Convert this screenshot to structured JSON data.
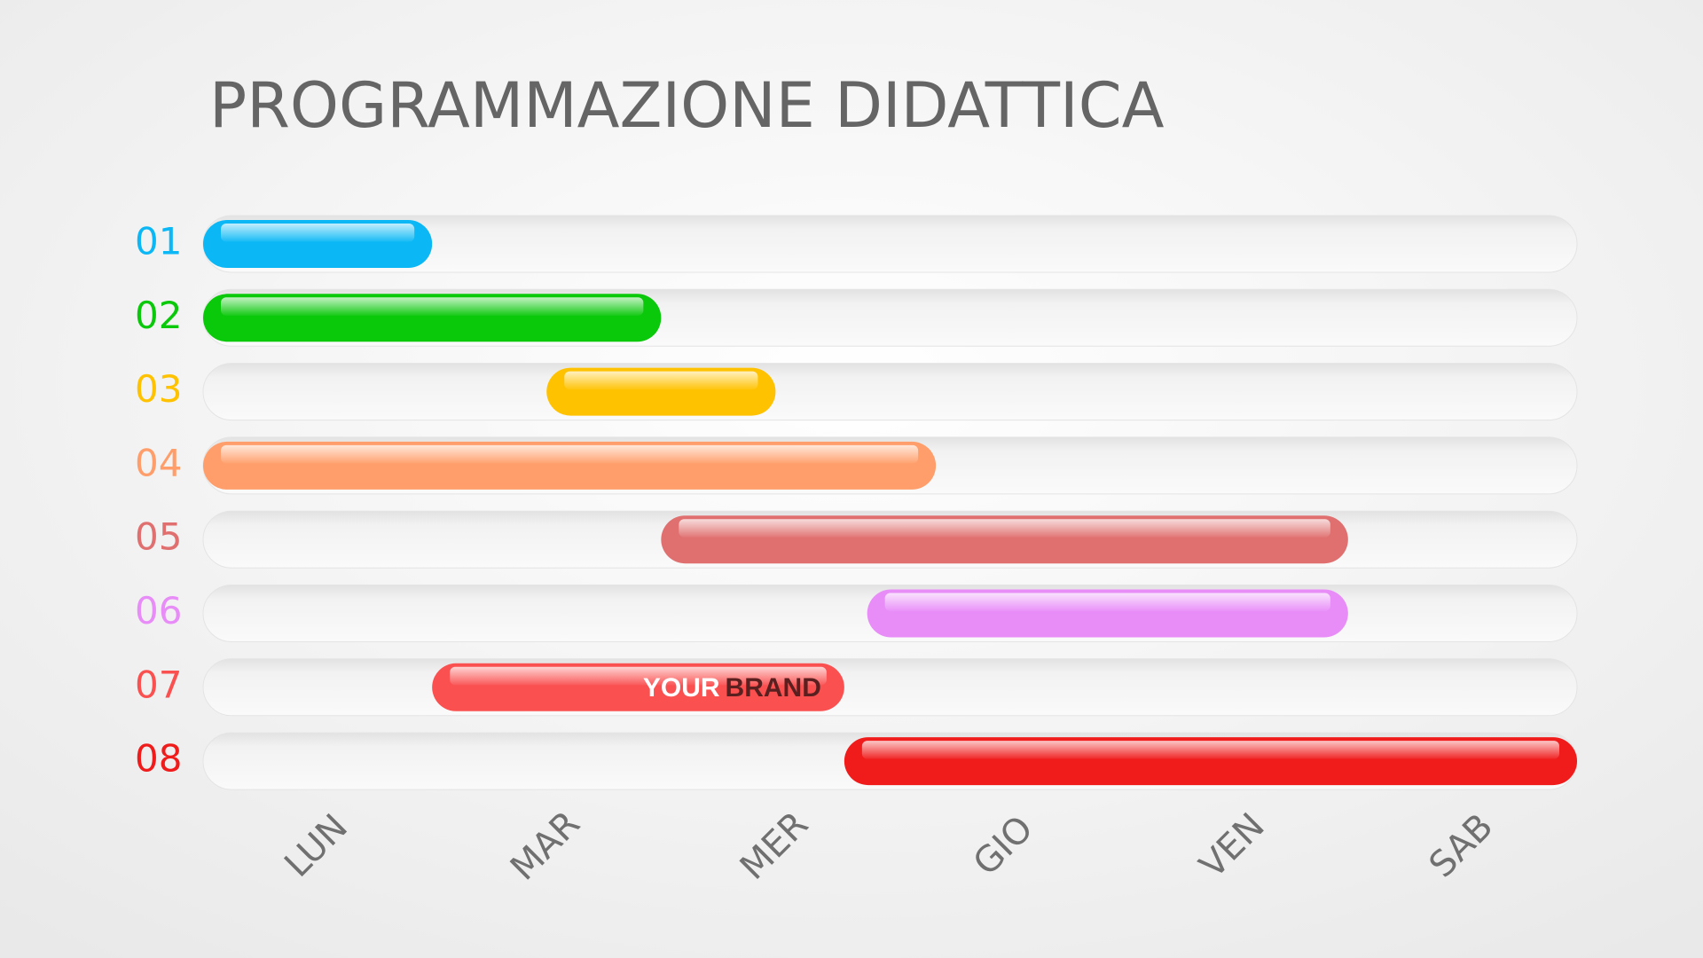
{
  "chart_data": {
    "type": "gantt",
    "title": "PROGRAMMAZIONE DIDATTICA",
    "categories": [
      "LUN",
      "MAR",
      "MER",
      "GIO",
      "VEN",
      "SAB"
    ],
    "xlim": [
      0,
      6
    ],
    "tasks": [
      {
        "name": "01",
        "color": "#0bb8f5",
        "start": 0,
        "end": 1
      },
      {
        "name": "02",
        "color": "#0ac80a",
        "start": 0,
        "end": 2
      },
      {
        "name": "03",
        "color": "#ffc200",
        "start": 1.5,
        "end": 2.5
      },
      {
        "name": "04",
        "color": "#ff9e6a",
        "start": 0,
        "end": 3.2
      },
      {
        "name": "05",
        "color": "#e07070",
        "start": 2,
        "end": 5
      },
      {
        "name": "06",
        "color": "#e88cf8",
        "start": 2.9,
        "end": 5
      },
      {
        "name": "07",
        "color": "#fa5050",
        "start": 1,
        "end": 2.8
      },
      {
        "name": "08",
        "color": "#f01c1c",
        "start": 2.8,
        "end": 6
      }
    ],
    "watermark": [
      "YOUR",
      "BRAND"
    ]
  }
}
